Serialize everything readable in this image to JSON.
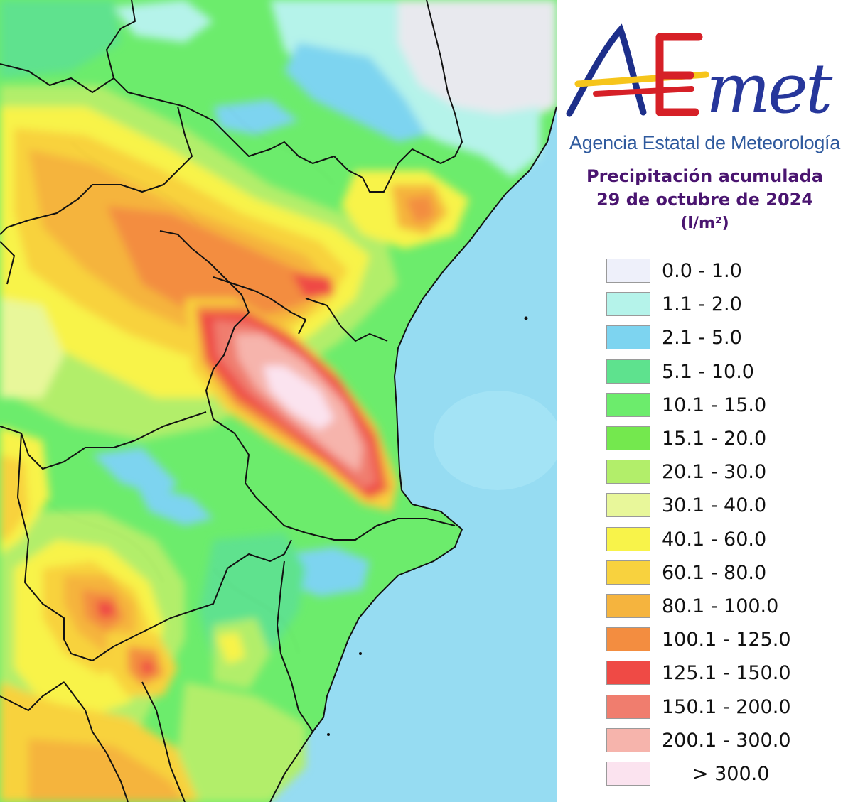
{
  "logo": {
    "wordmark": "AEmet",
    "agency_name": "Agencia Estatal de Meteorología",
    "colors": {
      "a": "#1d2f8a",
      "e": "#d62027",
      "met": "#27379b",
      "bar_yellow": "#f6c51b",
      "bar_red": "#d62027"
    }
  },
  "title": {
    "line1": "Precipitación acumulada",
    "line2": "29 de octubre de 2024",
    "unit": "(l/m²)"
  },
  "legend": [
    {
      "label": "0.0 - 1.0",
      "color": "#eef0fa"
    },
    {
      "label": "1.1 - 2.0",
      "color": "#b5f3ea"
    },
    {
      "label": "2.1 - 5.0",
      "color": "#7dd4f0"
    },
    {
      "label": "5.1 - 10.0",
      "color": "#5ee28e"
    },
    {
      "label": "10.1 - 15.0",
      "color": "#6cec6c"
    },
    {
      "label": "15.1 - 20.0",
      "color": "#74e84e"
    },
    {
      "label": "20.1 - 30.0",
      "color": "#b2ee6a"
    },
    {
      "label": "30.1 - 40.0",
      "color": "#e8f79a"
    },
    {
      "label": "40.1 - 60.0",
      "color": "#f8f34a"
    },
    {
      "label": "60.1 - 80.0",
      "color": "#f8d23e"
    },
    {
      "label": "80.1 - 100.0",
      "color": "#f5b43e"
    },
    {
      "label": "100.1 - 125.0",
      "color": "#f38d40"
    },
    {
      "label": "125.1 - 150.0",
      "color": "#ef4a45"
    },
    {
      "label": "150.1 - 200.0",
      "color": "#f07d6e"
    },
    {
      "label": "200.1 - 300.0",
      "color": "#f6b4ac"
    },
    {
      "label": "     > 300.0",
      "color": "#fbe3ef"
    }
  ],
  "map": {
    "sea_color": "#96dcf2",
    "land_dry_color": "#e8e9ee",
    "border_color": "#111111"
  }
}
